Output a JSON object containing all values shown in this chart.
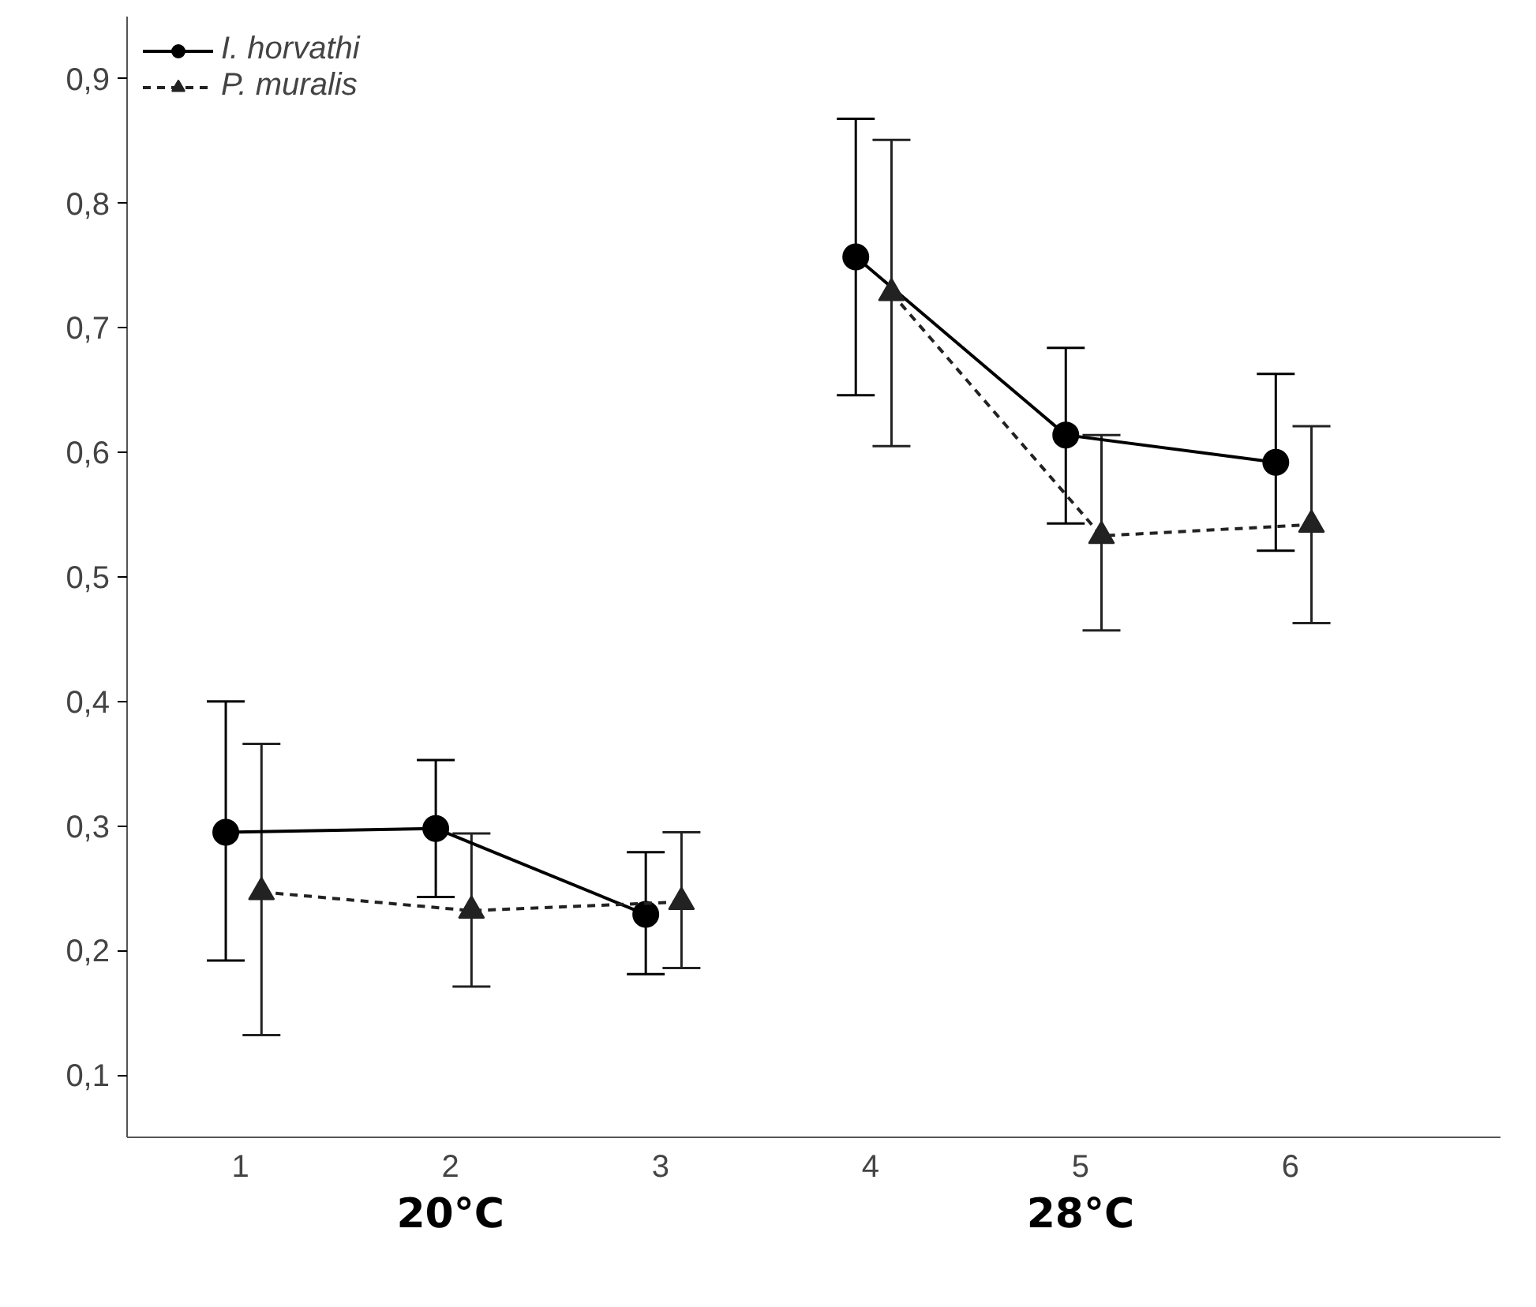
{
  "chart_data": {
    "type": "line",
    "xlim": [
      0.46,
      7.0
    ],
    "xticks": [
      1,
      2,
      3,
      4,
      5,
      6
    ],
    "ylim": [
      0.05,
      0.95
    ],
    "yticks": [
      {
        "value": 0.1,
        "label": "0,1"
      },
      {
        "value": 0.2,
        "label": "0,2"
      },
      {
        "value": 0.3,
        "label": "0,3"
      },
      {
        "value": 0.4,
        "label": "0,4"
      },
      {
        "value": 0.5,
        "label": "0,5"
      },
      {
        "value": 0.6,
        "label": "0,6"
      },
      {
        "value": 0.7,
        "label": "0,7"
      },
      {
        "value": 0.8,
        "label": "0,8"
      },
      {
        "value": 0.9,
        "label": "0,9"
      }
    ],
    "grid": false,
    "legend": "top left",
    "annotations": [
      "20°C",
      "28°C"
    ],
    "series": [
      {
        "name": "I. horvathi",
        "color": "#000000",
        "marker": "circle",
        "line_style": "solid",
        "x": [
          0.93,
          1.93,
          2.93,
          3.5,
          3.93,
          4.93,
          5.93
        ],
        "values": [
          0.295,
          0.298,
          0.229,
          null,
          0.757,
          0.614,
          0.592
        ],
        "errors": [
          [
            0.192,
            0.4
          ],
          [
            0.243,
            0.353
          ],
          [
            0.181,
            0.279
          ],
          null,
          [
            0.646,
            0.868
          ],
          [
            0.543,
            0.684
          ],
          [
            0.521,
            0.663
          ]
        ]
      },
      {
        "name": "P. muralis",
        "color": "#222222",
        "marker": "triangle",
        "line_style": "dashed",
        "x": [
          1.1,
          2.1,
          3.1,
          3.6,
          4.1,
          5.1,
          6.1
        ],
        "values": [
          0.247,
          0.232,
          0.239,
          null,
          0.728,
          0.533,
          0.542
        ],
        "errors": [
          [
            0.132,
            0.366
          ],
          [
            0.171,
            0.294
          ],
          [
            0.186,
            0.295
          ],
          null,
          [
            0.605,
            0.851
          ],
          [
            0.457,
            0.614
          ],
          [
            0.463,
            0.621
          ]
        ]
      }
    ]
  }
}
